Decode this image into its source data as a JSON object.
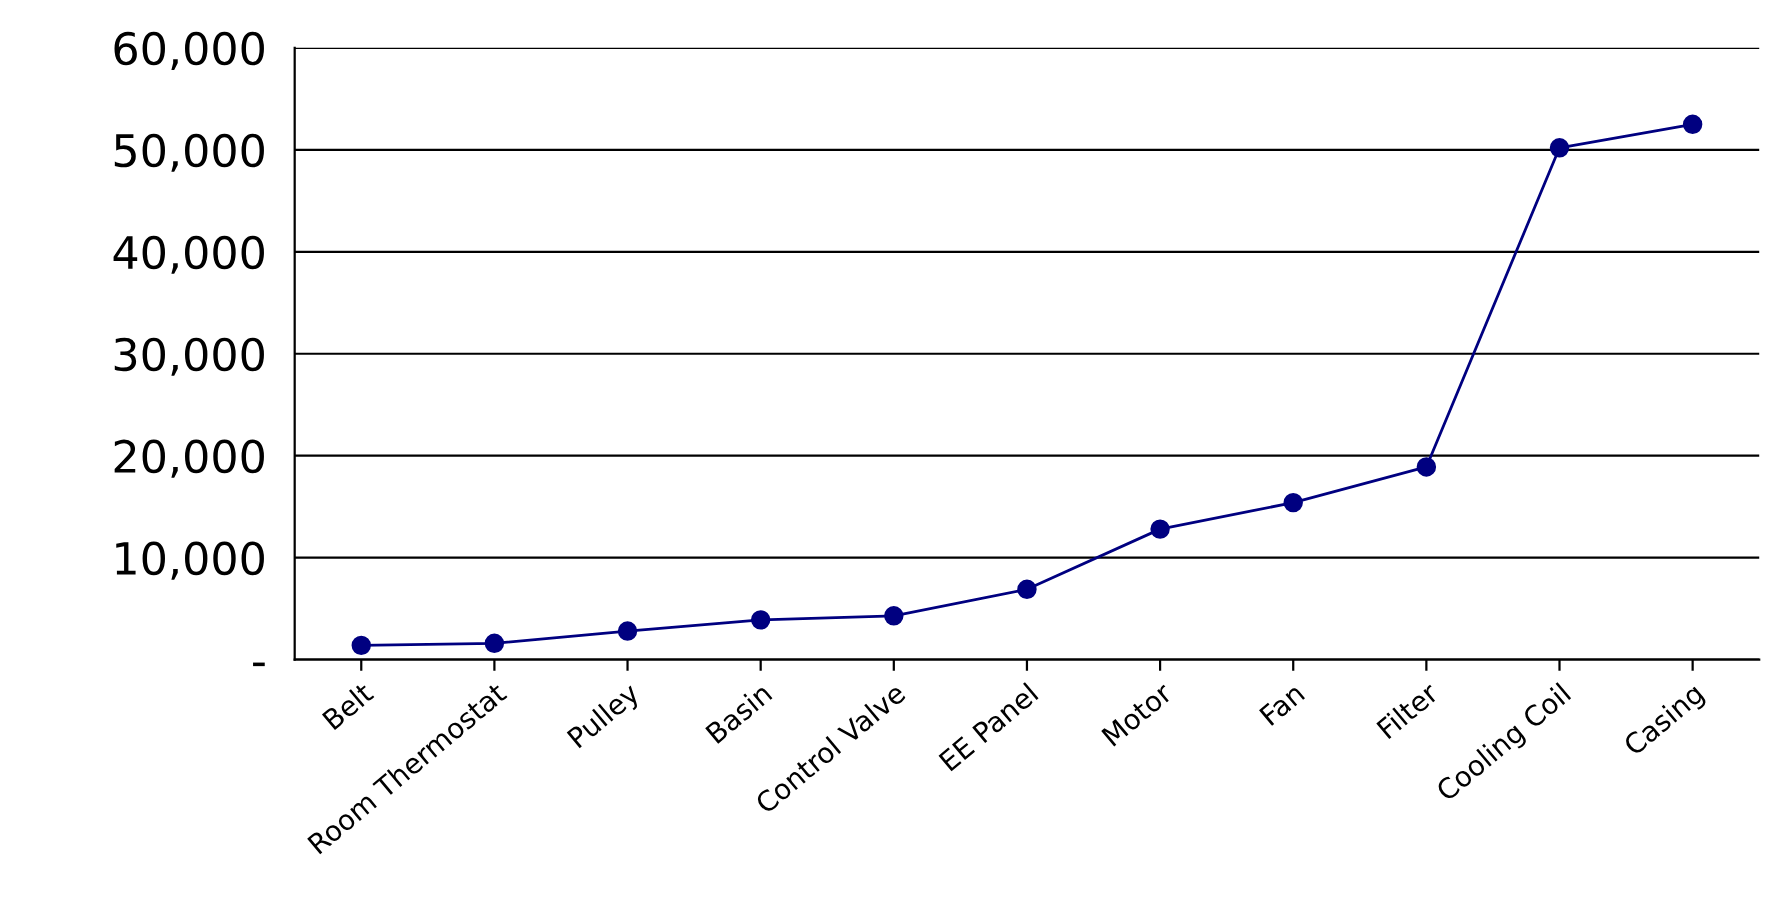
{
  "chart_data": {
    "type": "line",
    "categories": [
      "Belt",
      "Room Thermostat",
      "Pulley",
      "Basin",
      "Control Valve",
      "EE Panel",
      "Motor",
      "Fan",
      "Filter",
      "Cooling Coil",
      "Casing"
    ],
    "series": [
      {
        "color": "#000080",
        "values": [
          1400,
          1600,
          2800,
          3900,
          4300,
          6900,
          12800,
          15400,
          18900,
          50200,
          52500
        ]
      }
    ],
    "ylim": [
      0,
      60000
    ],
    "yticks": [
      {
        "value": 0,
        "label": "-"
      },
      {
        "value": 10000,
        "label": "10,000"
      },
      {
        "value": 20000,
        "label": "20,000"
      },
      {
        "value": 30000,
        "label": "30,000"
      },
      {
        "value": 40000,
        "label": "40,000"
      },
      {
        "value": 50000,
        "label": "50,000"
      },
      {
        "value": 60000,
        "label": "60,000"
      }
    ],
    "grid": "y",
    "marker": "circle",
    "line_style": "solid",
    "legend": false
  }
}
